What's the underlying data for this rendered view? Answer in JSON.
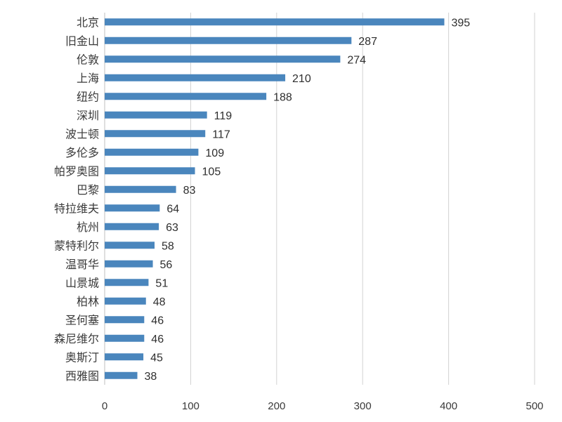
{
  "chart_data": {
    "type": "bar",
    "orientation": "horizontal",
    "title": "",
    "xlabel": "",
    "ylabel": "",
    "xlim": [
      0,
      500
    ],
    "x_ticks": [
      0,
      100,
      200,
      300,
      400,
      500
    ],
    "grid": true,
    "bar_color": "#4a86bd",
    "categories": [
      "北京",
      "旧金山",
      "伦敦",
      "上海",
      "纽约",
      "深圳",
      "波士顿",
      "多伦多",
      "帕罗奥图",
      "巴黎",
      "特拉维夫",
      "杭州",
      "蒙特利尔",
      "温哥华",
      "山景城",
      "柏林",
      "圣何塞",
      "森尼维尔",
      "奥斯汀",
      "西雅图"
    ],
    "values": [
      395,
      287,
      274,
      210,
      188,
      119,
      117,
      109,
      105,
      83,
      64,
      63,
      58,
      56,
      51,
      48,
      46,
      46,
      45,
      38
    ]
  }
}
